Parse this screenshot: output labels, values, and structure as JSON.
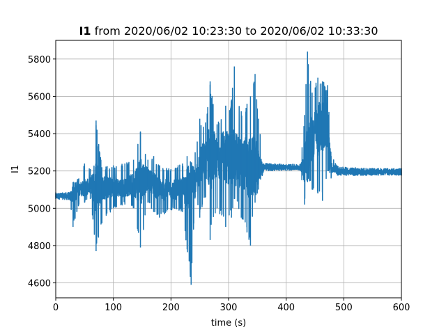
{
  "chart_data": {
    "type": "line",
    "title_bold": "I1",
    "title_rest": " from 2020/06/02 10:23:30 to 2020/06/02 10:33:30",
    "xlabel": "time (s)",
    "ylabel": "I1",
    "xlim": [
      0,
      600
    ],
    "ylim": [
      4520,
      5900
    ],
    "xticks": [
      0,
      100,
      200,
      300,
      400,
      500,
      600
    ],
    "yticks": [
      4600,
      4800,
      5000,
      5200,
      5400,
      5600,
      5800
    ],
    "grid": true,
    "legend": "none",
    "series_color": "#1f77b4",
    "envelope": [
      {
        "x": 0,
        "base": 5065,
        "lo": 5050,
        "hi": 5085
      },
      {
        "x": 25,
        "base": 5065,
        "lo": 5040,
        "hi": 5085
      },
      {
        "x": 30,
        "base": 5070,
        "lo": 4900,
        "hi": 5140
      },
      {
        "x": 40,
        "base": 5100,
        "lo": 5020,
        "hi": 5160
      },
      {
        "x": 50,
        "base": 5110,
        "lo": 5030,
        "hi": 5240
      },
      {
        "x": 60,
        "base": 5120,
        "lo": 5050,
        "hi": 5210
      },
      {
        "x": 70,
        "base": 5120,
        "lo": 4770,
        "hi": 5470
      },
      {
        "x": 80,
        "base": 5110,
        "lo": 4920,
        "hi": 5220
      },
      {
        "x": 100,
        "base": 5110,
        "lo": 5000,
        "hi": 5230
      },
      {
        "x": 120,
        "base": 5110,
        "lo": 5020,
        "hi": 5240
      },
      {
        "x": 135,
        "base": 5130,
        "lo": 5000,
        "hi": 5260
      },
      {
        "x": 147,
        "base": 5150,
        "lo": 4790,
        "hi": 5410
      },
      {
        "x": 160,
        "base": 5160,
        "lo": 5030,
        "hi": 5260
      },
      {
        "x": 170,
        "base": 5130,
        "lo": 4980,
        "hi": 5280
      },
      {
        "x": 180,
        "base": 5100,
        "lo": 4950,
        "hi": 5230
      },
      {
        "x": 200,
        "base": 5100,
        "lo": 4990,
        "hi": 5210
      },
      {
        "x": 220,
        "base": 5100,
        "lo": 4980,
        "hi": 5240
      },
      {
        "x": 228,
        "base": 5110,
        "lo": 4780,
        "hi": 5280
      },
      {
        "x": 235,
        "base": 5120,
        "lo": 4590,
        "hi": 5200
      },
      {
        "x": 242,
        "base": 5140,
        "lo": 5060,
        "hi": 5300
      },
      {
        "x": 250,
        "base": 5230,
        "lo": 4950,
        "hi": 5480
      },
      {
        "x": 260,
        "base": 5260,
        "lo": 5060,
        "hi": 5460
      },
      {
        "x": 268,
        "base": 5280,
        "lo": 4830,
        "hi": 5680
      },
      {
        "x": 280,
        "base": 5270,
        "lo": 5000,
        "hi": 5450
      },
      {
        "x": 295,
        "base": 5280,
        "lo": 4900,
        "hi": 5550
      },
      {
        "x": 305,
        "base": 5260,
        "lo": 4950,
        "hi": 5580
      },
      {
        "x": 310,
        "base": 5270,
        "lo": 5050,
        "hi": 5760
      },
      {
        "x": 322,
        "base": 5240,
        "lo": 4950,
        "hi": 5520
      },
      {
        "x": 332,
        "base": 5230,
        "lo": 4870,
        "hi": 5560
      },
      {
        "x": 338,
        "base": 5200,
        "lo": 4800,
        "hi": 5600
      },
      {
        "x": 346,
        "base": 5230,
        "lo": 5030,
        "hi": 5720
      },
      {
        "x": 352,
        "base": 5220,
        "lo": 5100,
        "hi": 5480
      },
      {
        "x": 360,
        "base": 5220,
        "lo": 5190,
        "hi": 5240
      },
      {
        "x": 380,
        "base": 5220,
        "lo": 5200,
        "hi": 5240
      },
      {
        "x": 400,
        "base": 5220,
        "lo": 5200,
        "hi": 5235
      },
      {
        "x": 425,
        "base": 5220,
        "lo": 5200,
        "hi": 5235
      },
      {
        "x": 432,
        "base": 5240,
        "lo": 5020,
        "hi": 5500
      },
      {
        "x": 437,
        "base": 5300,
        "lo": 5140,
        "hi": 5840
      },
      {
        "x": 445,
        "base": 5380,
        "lo": 5100,
        "hi": 5620
      },
      {
        "x": 455,
        "base": 5420,
        "lo": 5080,
        "hi": 5700
      },
      {
        "x": 463,
        "base": 5450,
        "lo": 5040,
        "hi": 5680
      },
      {
        "x": 472,
        "base": 5430,
        "lo": 5200,
        "hi": 5660
      },
      {
        "x": 478,
        "base": 5220,
        "lo": 5160,
        "hi": 5280
      },
      {
        "x": 490,
        "base": 5200,
        "lo": 5175,
        "hi": 5225
      },
      {
        "x": 520,
        "base": 5195,
        "lo": 5175,
        "hi": 5220
      },
      {
        "x": 560,
        "base": 5195,
        "lo": 5175,
        "hi": 5215
      },
      {
        "x": 600,
        "base": 5195,
        "lo": 5175,
        "hi": 5215
      }
    ]
  }
}
